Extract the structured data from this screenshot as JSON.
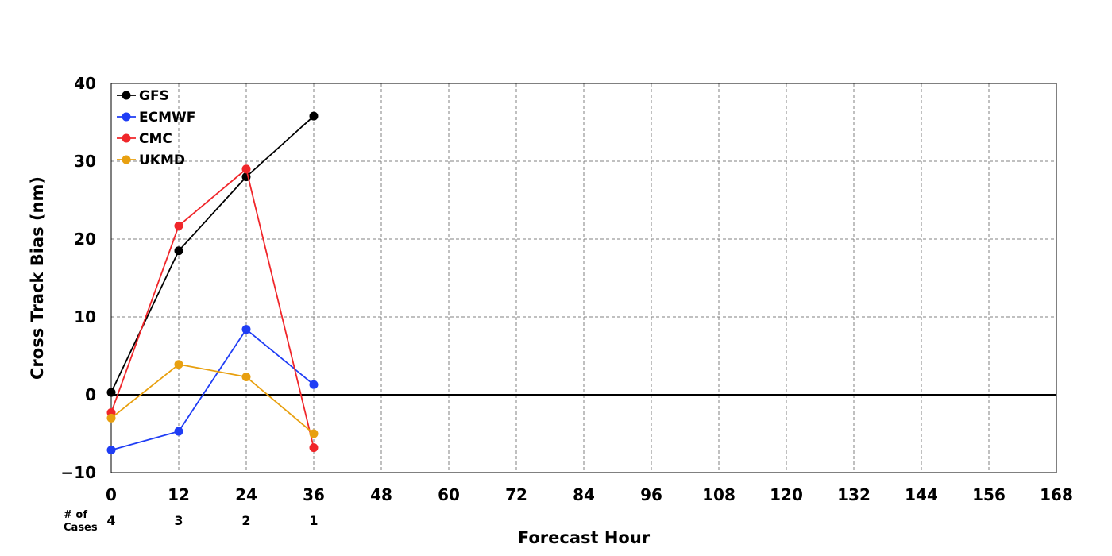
{
  "chart_data": {
    "type": "line",
    "title": "",
    "xlabel": "Forecast Hour",
    "ylabel": "Cross Track Bias (nm)",
    "xlim": [
      0,
      168
    ],
    "ylim": [
      -10,
      40
    ],
    "x_ticks": [
      "0",
      "12",
      "24",
      "36",
      "48",
      "60",
      "72",
      "84",
      "96",
      "108",
      "120",
      "132",
      "144",
      "156",
      "168"
    ],
    "y_ticks": [
      "−10",
      "0",
      "10",
      "20",
      "30",
      "40"
    ],
    "grid": true,
    "legend_position": "top-left",
    "zero_line": true,
    "x": [
      0,
      12,
      24,
      36
    ],
    "series": [
      {
        "name": "GFS",
        "color": "#000000",
        "values": [
          0.3,
          18.5,
          28.0,
          35.8
        ]
      },
      {
        "name": "ECMWF",
        "color": "#1f3df5",
        "values": [
          -7.1,
          -4.7,
          8.4,
          1.3
        ]
      },
      {
        "name": "CMC",
        "color": "#f0262a",
        "values": [
          -2.3,
          21.7,
          29.0,
          -6.8
        ]
      },
      {
        "name": "UKMD",
        "color": "#e8a010",
        "values": [
          -3.0,
          3.9,
          2.3,
          -5.0
        ]
      }
    ],
    "cases": {
      "label_line1": "# of",
      "label_line2": "Cases",
      "x": [
        0,
        12,
        24,
        36
      ],
      "counts": [
        "4",
        "3",
        "2",
        "1"
      ]
    }
  }
}
